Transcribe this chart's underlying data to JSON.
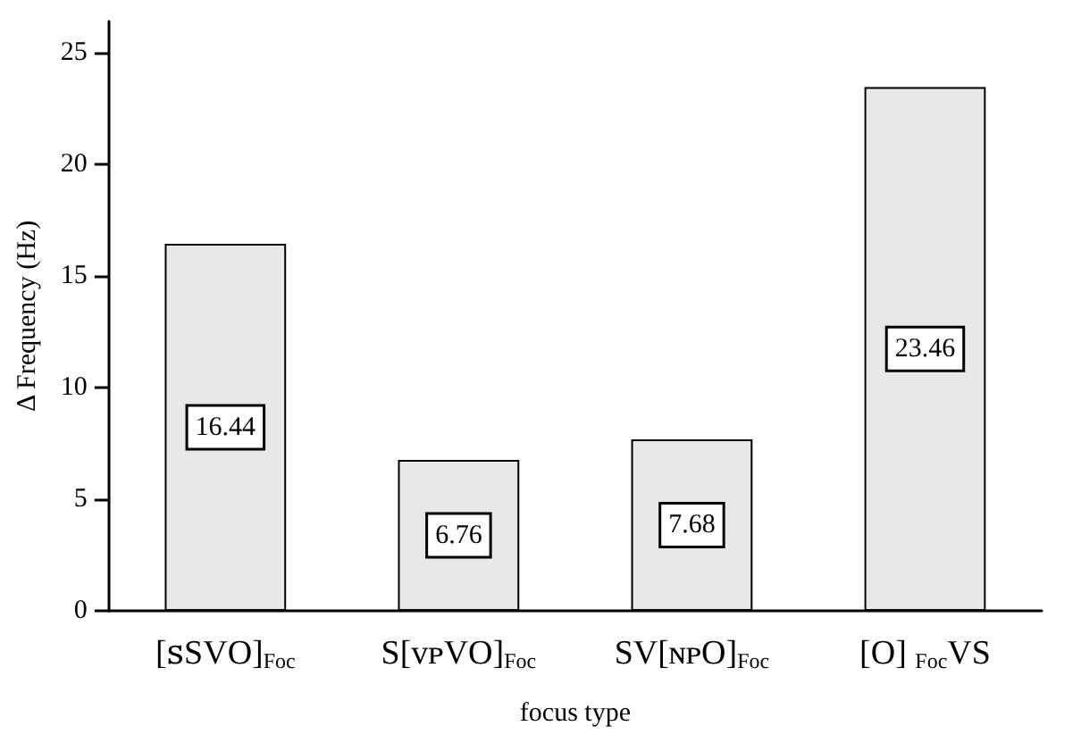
{
  "chart_data": {
    "type": "bar",
    "xlabel": "focus type",
    "ylabel": "Δ Frequency (Hz)",
    "categories": [
      "[ꜱSVO]$_{Foc}$",
      "S[ᴠᴘVO]$_{Foc}$",
      "SV[ɴᴘO]$_{Foc}$",
      "[O] $_{Foc}$VS"
    ],
    "values": [
      16.44,
      6.76,
      7.68,
      23.46
    ],
    "color": "#e8e8e8",
    "ylim": [
      0,
      26.4
    ],
    "yticks": [
      0,
      5,
      10,
      15,
      20,
      25
    ],
    "grid": false,
    "data_labels": true
  }
}
